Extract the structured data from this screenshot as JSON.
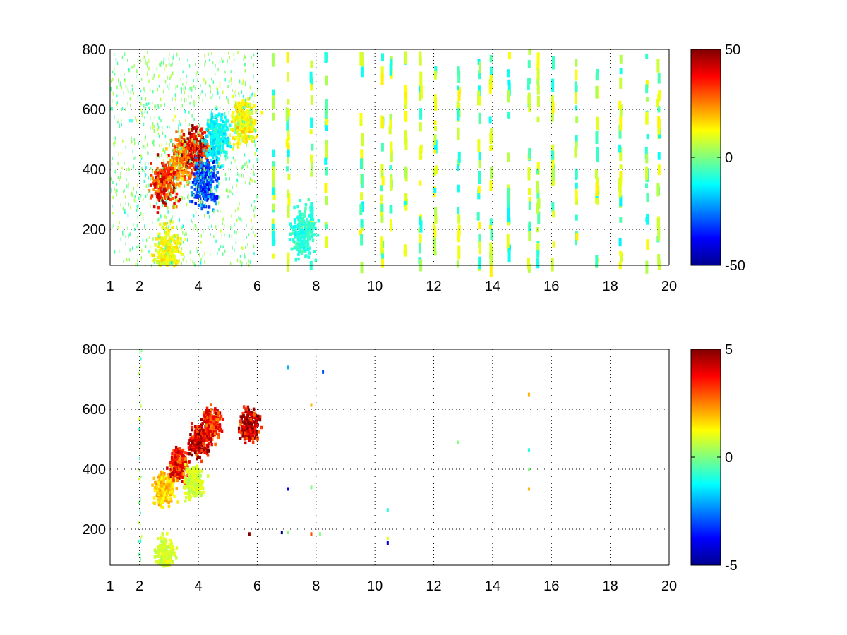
{
  "chart_data": [
    {
      "type": "heatmap",
      "panel": "top",
      "title": "",
      "xlabel": "",
      "ylabel": "",
      "xlim": [
        1,
        20
      ],
      "ylim": [
        80,
        800
      ],
      "x_ticks": [
        1,
        2,
        4,
        6,
        8,
        10,
        12,
        14,
        16,
        18,
        20
      ],
      "x_tick_labels": [
        "1",
        "2",
        "4",
        "6",
        "8",
        "10",
        "12",
        "14",
        "16",
        "18",
        "20"
      ],
      "y_ticks": [
        200,
        400,
        600,
        800
      ],
      "y_tick_labels": [
        "200",
        "400",
        "600",
        "800"
      ],
      "grid": true,
      "colormap": "jet",
      "clim": [
        -50,
        50
      ],
      "colorbar_ticks": [
        -50,
        0,
        50
      ],
      "colorbar_tick_labels": [
        "-50",
        "0",
        "50"
      ],
      "colorbar_placement": "right",
      "features": [
        {
          "x": 2.8,
          "y": 360,
          "value": 40
        },
        {
          "x": 3.4,
          "y": 440,
          "value": 30
        },
        {
          "x": 3.9,
          "y": 470,
          "value": 45
        },
        {
          "x": 4.2,
          "y": 360,
          "value": -35
        },
        {
          "x": 4.6,
          "y": 520,
          "value": -15
        },
        {
          "x": 5.5,
          "y": 560,
          "value": 15
        },
        {
          "x": 2.9,
          "y": 130,
          "value": 15
        },
        {
          "x": 7.5,
          "y": 200,
          "value": -10
        }
      ],
      "sparse_columns": [
        6.5,
        7.0,
        7.8,
        8.3,
        9.5,
        10.2,
        10.5,
        11.0,
        11.5,
        12.0,
        12.8,
        13.5,
        13.9,
        14.5,
        15.2,
        15.5,
        16.0,
        16.8,
        17.5,
        18.3,
        19.2,
        19.6
      ]
    },
    {
      "type": "heatmap",
      "panel": "bottom",
      "title": "",
      "xlabel": "",
      "ylabel": "",
      "xlim": [
        1,
        20
      ],
      "ylim": [
        80,
        800
      ],
      "x_ticks": [
        1,
        2,
        4,
        6,
        8,
        10,
        12,
        14,
        16,
        18,
        20
      ],
      "x_tick_labels": [
        "1",
        "2",
        "4",
        "6",
        "8",
        "10",
        "12",
        "14",
        "16",
        "18",
        "20"
      ],
      "y_ticks": [
        200,
        400,
        600,
        800
      ],
      "y_tick_labels": [
        "200",
        "400",
        "600",
        "800"
      ],
      "grid": true,
      "colormap": "jet",
      "clim": [
        -5,
        5
      ],
      "colorbar_ticks": [
        -5,
        0,
        5
      ],
      "colorbar_tick_labels": [
        "-5",
        "0",
        "5"
      ],
      "colorbar_placement": "right",
      "features": [
        {
          "x": 2.8,
          "y": 340,
          "value": 2
        },
        {
          "x": 3.3,
          "y": 420,
          "value": 4
        },
        {
          "x": 4.0,
          "y": 500,
          "value": 5
        },
        {
          "x": 4.4,
          "y": 560,
          "value": 4
        },
        {
          "x": 3.8,
          "y": 360,
          "value": 1
        },
        {
          "x": 5.7,
          "y": 550,
          "value": 5
        },
        {
          "x": 2.8,
          "y": 120,
          "value": 1
        }
      ],
      "isolated_points": [
        {
          "x": 7.0,
          "y": 745,
          "value": -2
        },
        {
          "x": 8.2,
          "y": 730,
          "value": -3
        },
        {
          "x": 7.8,
          "y": 620,
          "value": 2
        },
        {
          "x": 7.0,
          "y": 340,
          "value": -4
        },
        {
          "x": 7.8,
          "y": 345,
          "value": 0
        },
        {
          "x": 6.8,
          "y": 195,
          "value": -5
        },
        {
          "x": 7.0,
          "y": 195,
          "value": 0
        },
        {
          "x": 7.8,
          "y": 190,
          "value": 3
        },
        {
          "x": 8.1,
          "y": 190,
          "value": 0
        },
        {
          "x": 5.7,
          "y": 190,
          "value": 5
        },
        {
          "x": 10.4,
          "y": 270,
          "value": -1
        },
        {
          "x": 10.4,
          "y": 175,
          "value": 1
        },
        {
          "x": 10.4,
          "y": 160,
          "value": -4
        },
        {
          "x": 12.8,
          "y": 495,
          "value": 0
        },
        {
          "x": 15.2,
          "y": 655,
          "value": 2
        },
        {
          "x": 15.2,
          "y": 470,
          "value": -1
        },
        {
          "x": 15.2,
          "y": 405,
          "value": 0
        },
        {
          "x": 15.2,
          "y": 340,
          "value": 2
        }
      ]
    }
  ]
}
